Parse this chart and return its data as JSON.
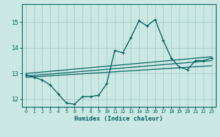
{
  "title": "",
  "xlabel": "Humidex (Indice chaleur)",
  "ylabel": "",
  "bg_color": "#cce8e4",
  "grid_color": "#aacfcb",
  "line_color": "#006060",
  "xlim": [
    -0.5,
    23.5
  ],
  "ylim": [
    11.7,
    15.7
  ],
  "yticks": [
    12,
    13,
    14,
    15
  ],
  "xticks": [
    0,
    1,
    2,
    3,
    4,
    5,
    6,
    7,
    8,
    9,
    10,
    11,
    12,
    13,
    14,
    15,
    16,
    17,
    18,
    19,
    20,
    21,
    22,
    23
  ],
  "main_x": [
    0,
    1,
    2,
    3,
    4,
    5,
    6,
    7,
    8,
    9,
    10,
    11,
    12,
    13,
    14,
    15,
    16,
    17,
    18,
    19,
    20,
    21,
    22,
    23
  ],
  "main_y": [
    12.95,
    12.85,
    12.75,
    12.55,
    12.2,
    11.85,
    11.8,
    12.1,
    12.1,
    12.15,
    12.6,
    13.9,
    13.8,
    14.4,
    15.05,
    14.85,
    15.1,
    14.3,
    13.6,
    13.25,
    13.15,
    13.5,
    13.5,
    13.6
  ],
  "line2_x": [
    0,
    23
  ],
  "line2_y": [
    13.0,
    13.65
  ],
  "line3_x": [
    0,
    23
  ],
  "line3_y": [
    12.9,
    13.5
  ],
  "line4_x": [
    0,
    23
  ],
  "line4_y": [
    12.85,
    13.3
  ]
}
